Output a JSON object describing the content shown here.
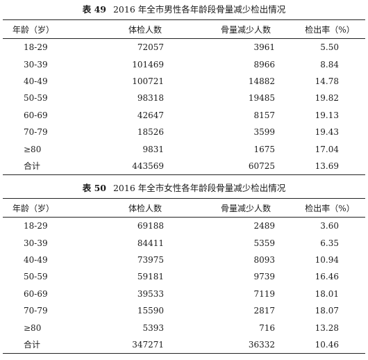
{
  "tables": [
    {
      "label": "表 49",
      "title": "2016 年全市男性各年龄段骨量减少检出情况",
      "headers": [
        "年龄（岁）",
        "体检人数",
        "骨量减少人数",
        "检出率（%）"
      ],
      "rows": [
        [
          "18-29",
          "72057",
          "3961",
          "5.50"
        ],
        [
          "30-39",
          "101469",
          "8966",
          "8.84"
        ],
        [
          "40-49",
          "100721",
          "14882",
          "14.78"
        ],
        [
          "50-59",
          "98318",
          "19485",
          "19.82"
        ],
        [
          "60-69",
          "42647",
          "8157",
          "19.13"
        ],
        [
          "70-79",
          "18526",
          "3599",
          "19.43"
        ],
        [
          "≥80",
          "9831",
          "1675",
          "17.04"
        ],
        [
          "合计",
          "443569",
          "60725",
          "13.69"
        ]
      ]
    },
    {
      "label": "表 50",
      "title": "2016 年全市女性各年龄段骨量减少检出情况",
      "headers": [
        "年龄（岁）",
        "体检人数",
        "骨量减少人数",
        "检出率（%）"
      ],
      "rows": [
        [
          "18-29",
          "69188",
          "2489",
          "3.60"
        ],
        [
          "30-39",
          "84411",
          "5359",
          "6.35"
        ],
        [
          "40-49",
          "73975",
          "8093",
          "10.94"
        ],
        [
          "50-59",
          "59181",
          "9739",
          "16.46"
        ],
        [
          "60-69",
          "39533",
          "7119",
          "18.01"
        ],
        [
          "70-79",
          "15590",
          "2817",
          "18.07"
        ],
        [
          "≥80",
          "5393",
          "716",
          "13.28"
        ],
        [
          "合计",
          "347271",
          "36332",
          "10.46"
        ]
      ]
    }
  ]
}
